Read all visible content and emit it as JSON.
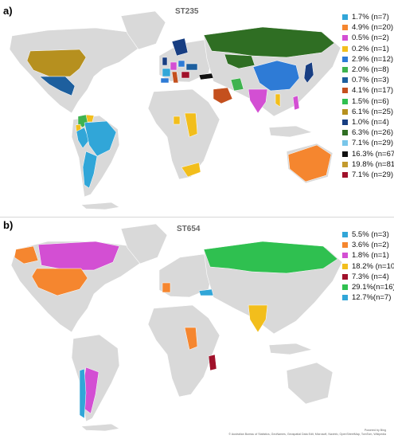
{
  "panels": [
    {
      "letter": "a)",
      "title": "ST235",
      "legend": [
        {
          "label": "1.7% (n=7)",
          "color": "#31a6d8"
        },
        {
          "label": "4.9% (n=20)",
          "color": "#f5862f"
        },
        {
          "label": "0.5% (n=2)",
          "color": "#d34fd3"
        },
        {
          "label": "0.2% (n=1)",
          "color": "#f2be1c"
        },
        {
          "label": "2.9% (n=12)",
          "color": "#2e7bd6"
        },
        {
          "label": "2.0% (n=8)",
          "color": "#3fb34f"
        },
        {
          "label": "0.7% (n=3)",
          "color": "#1d5f9e"
        },
        {
          "label": "4.1% (n=17)",
          "color": "#c4501e"
        },
        {
          "label": "1.5% (n=6)",
          "color": "#2fc050"
        },
        {
          "label": "6.1% (n=25)",
          "color": "#b6901f"
        },
        {
          "label": "1.0% (n=4)",
          "color": "#183e82"
        },
        {
          "label": "6.3% (n=26)",
          "color": "#2f6e23"
        },
        {
          "label": "7.1% (n=29)",
          "color": "#79c6ea"
        },
        {
          "label": "16.3% (n=67)",
          "color": "#111111"
        },
        {
          "label": "19.8% (n=81)",
          "color": "#c39a2d"
        },
        {
          "label": "7.1%  (n=29)",
          "color": "#a0112a"
        }
      ]
    },
    {
      "letter": "b)",
      "title": "ST654",
      "legend": [
        {
          "label": "5.5% (n=3)",
          "color": "#31a6d8"
        },
        {
          "label": "3.6% (n=2)",
          "color": "#f5862f"
        },
        {
          "label": "1.8% (n=1)",
          "color": "#d34fd3"
        },
        {
          "label": "18.2% (n=10)",
          "color": "#f2be1c"
        },
        {
          "label": "7.3% (n=4)",
          "color": "#a0112a"
        },
        {
          "label": "29.1%(n=16)",
          "color": "#2fc050"
        },
        {
          "label": "12.7%(n=7)",
          "color": "#31a6d8"
        }
      ]
    }
  ],
  "attribution": {
    "line1": "Powered by Bing",
    "line2": "© Australian Bureau of Statistics, GeoNames, Geospatial Data Edit, Microsoft, Navinfo, OpenStreetMap, TomTom, Wikipedia"
  },
  "map_colors": {
    "land": "#d9d9d9",
    "a": {
      "usa": "#b6901f",
      "mexico": "#1d5f9e",
      "colombia": "#3fb34f",
      "venezuela": "#f2be1c",
      "ecuador": "#f2be1c",
      "peru": "#31a6d8",
      "brazil": "#31a6d8",
      "argentina": "#31a6d8",
      "russia": "#2f6e23",
      "china": "#2e7bd6",
      "japan": "#183e82",
      "india": "#d34fd3",
      "thailand": "#f2be1c",
      "philippines": "#d34fd3",
      "australia": "#f5862f",
      "ghana": "#f2be1c",
      "nigeria": "#f2be1c",
      "south_africa": "#f2be1c",
      "saudi": "#c4501e",
      "iran": "#3fb34f",
      "turkey": "#111111",
      "france": "#31a6d8",
      "spain": "#2e7bd6",
      "italy": "#c4501e",
      "germany": "#d34fd3",
      "uk": "#183e82",
      "poland": "#2e7bd6",
      "ukraine": "#1d5f9e",
      "scandinavia": "#183e82",
      "balkans": "#a0112a",
      "kazakhstan": "#2f6e23"
    },
    "b": {
      "canada": "#d34fd3",
      "alaska": "#f5862f",
      "usa": "#f5862f",
      "france": "#f5862f",
      "russia": "#2fc050",
      "india": "#f2be1c",
      "nigeria": "#f5862f",
      "kenya": "#a0112a",
      "argentina": "#d34fd3",
      "chile": "#31a6d8",
      "turkey": "#31a6d8"
    }
  }
}
